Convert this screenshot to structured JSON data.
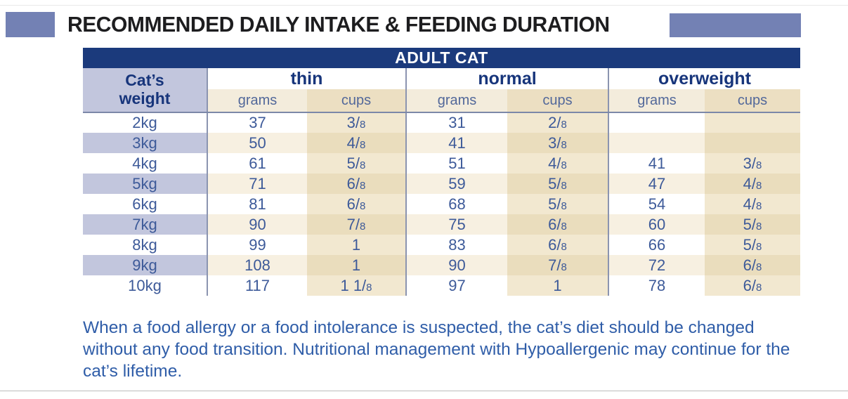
{
  "header": {
    "title": "RECOMMENDED DAILY INTAKE & FEEDING DURATION"
  },
  "table": {
    "title": "ADULT CAT",
    "weight_header_line1": "Cat’s",
    "weight_header_line2": "weight",
    "groups": [
      {
        "label": "thin"
      },
      {
        "label": "normal"
      },
      {
        "label": "overweight"
      }
    ],
    "unit_headers": [
      "grams",
      "cups"
    ],
    "rows": [
      {
        "weight": "2kg",
        "thin": {
          "grams": "37",
          "cups": "3/8"
        },
        "normal": {
          "grams": "31",
          "cups": "2/8"
        },
        "overweight": {
          "grams": "",
          "cups": ""
        }
      },
      {
        "weight": "3kg",
        "thin": {
          "grams": "50",
          "cups": "4/8"
        },
        "normal": {
          "grams": "41",
          "cups": "3/8"
        },
        "overweight": {
          "grams": "",
          "cups": ""
        }
      },
      {
        "weight": "4kg",
        "thin": {
          "grams": "61",
          "cups": "5/8"
        },
        "normal": {
          "grams": "51",
          "cups": "4/8"
        },
        "overweight": {
          "grams": "41",
          "cups": "3/8"
        }
      },
      {
        "weight": "5kg",
        "thin": {
          "grams": "71",
          "cups": "6/8"
        },
        "normal": {
          "grams": "59",
          "cups": "5/8"
        },
        "overweight": {
          "grams": "47",
          "cups": "4/8"
        }
      },
      {
        "weight": "6kg",
        "thin": {
          "grams": "81",
          "cups": "6/8"
        },
        "normal": {
          "grams": "68",
          "cups": "5/8"
        },
        "overweight": {
          "grams": "54",
          "cups": "4/8"
        }
      },
      {
        "weight": "7kg",
        "thin": {
          "grams": "90",
          "cups": "7/8"
        },
        "normal": {
          "grams": "75",
          "cups": "6/8"
        },
        "overweight": {
          "grams": "60",
          "cups": "5/8"
        }
      },
      {
        "weight": "8kg",
        "thin": {
          "grams": "99",
          "cups": "1"
        },
        "normal": {
          "grams": "83",
          "cups": "6/8"
        },
        "overweight": {
          "grams": "66",
          "cups": "5/8"
        }
      },
      {
        "weight": "9kg",
        "thin": {
          "grams": "108",
          "cups": "1"
        },
        "normal": {
          "grams": "90",
          "cups": "7/8"
        },
        "overweight": {
          "grams": "72",
          "cups": "6/8"
        }
      },
      {
        "weight": "10kg",
        "thin": {
          "grams": "117",
          "cups": "1 1/8"
        },
        "normal": {
          "grams": "97",
          "cups": "1"
        },
        "overweight": {
          "grams": "78",
          "cups": "6/8"
        }
      }
    ]
  },
  "footnote": {
    "text": "When a food allergy or a food intolerance is suspected, the cat’s diet should be changed without any food transition. Nutritional management with Hypoallergenic may continue for the cat’s lifetime."
  },
  "colors": {
    "accent_purple": "#7381b4",
    "navy_header": "#1b3a7c",
    "table_text_blue": "#3d5a99",
    "lavender_row": "#c2c6dd",
    "cream_stripe": "#f7f0e1",
    "tan_cups": "#f2e8d0",
    "tan_cups_striped": "#eaddbd",
    "footnote_blue": "#2f5da8"
  }
}
